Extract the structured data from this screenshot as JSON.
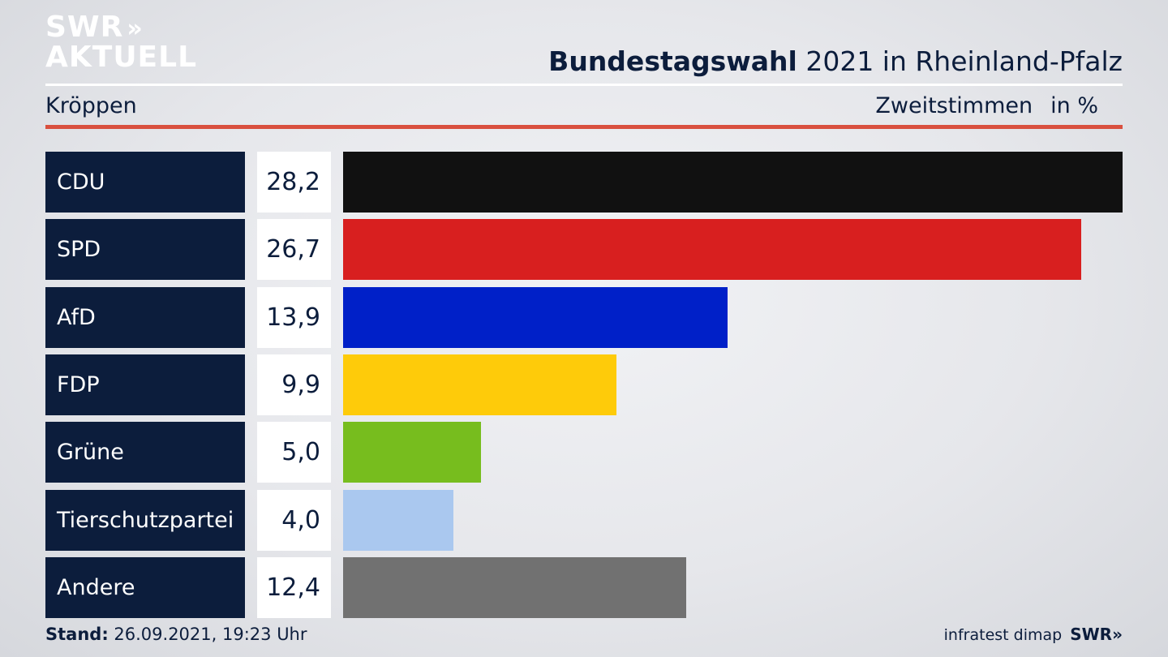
{
  "logo": {
    "line1": "SWR",
    "chevrons": "»",
    "line2": "AKTUELL"
  },
  "header": {
    "title_bold": "Bundestagswahl",
    "title_rest": "2021 in Rheinland-Pfalz",
    "region": "Kröppen",
    "measure": "Zweitstimmen",
    "unit": "in %"
  },
  "chart_data": {
    "type": "bar",
    "orientation": "horizontal",
    "categories": [
      "CDU",
      "SPD",
      "AfD",
      "FDP",
      "Grüne",
      "Tierschutzpartei",
      "Andere"
    ],
    "values": [
      28.2,
      26.7,
      13.9,
      9.9,
      5.0,
      4.0,
      12.4
    ],
    "value_labels": [
      "28,2",
      "26,7",
      "13,9",
      "9,9",
      "5,0",
      "4,0",
      "12,4"
    ],
    "colors": [
      "#111111",
      "#d81f1f",
      "#0020c8",
      "#fecb0a",
      "#77bd1e",
      "#aac8ef",
      "#717171"
    ],
    "xlim": [
      0,
      28.2
    ],
    "grid": false,
    "legend": "none"
  },
  "footer": {
    "stand_label": "Stand:",
    "stand_value": "26.09.2021, 19:23 Uhr",
    "source": "infratest dimap",
    "brand": "SWR»"
  }
}
